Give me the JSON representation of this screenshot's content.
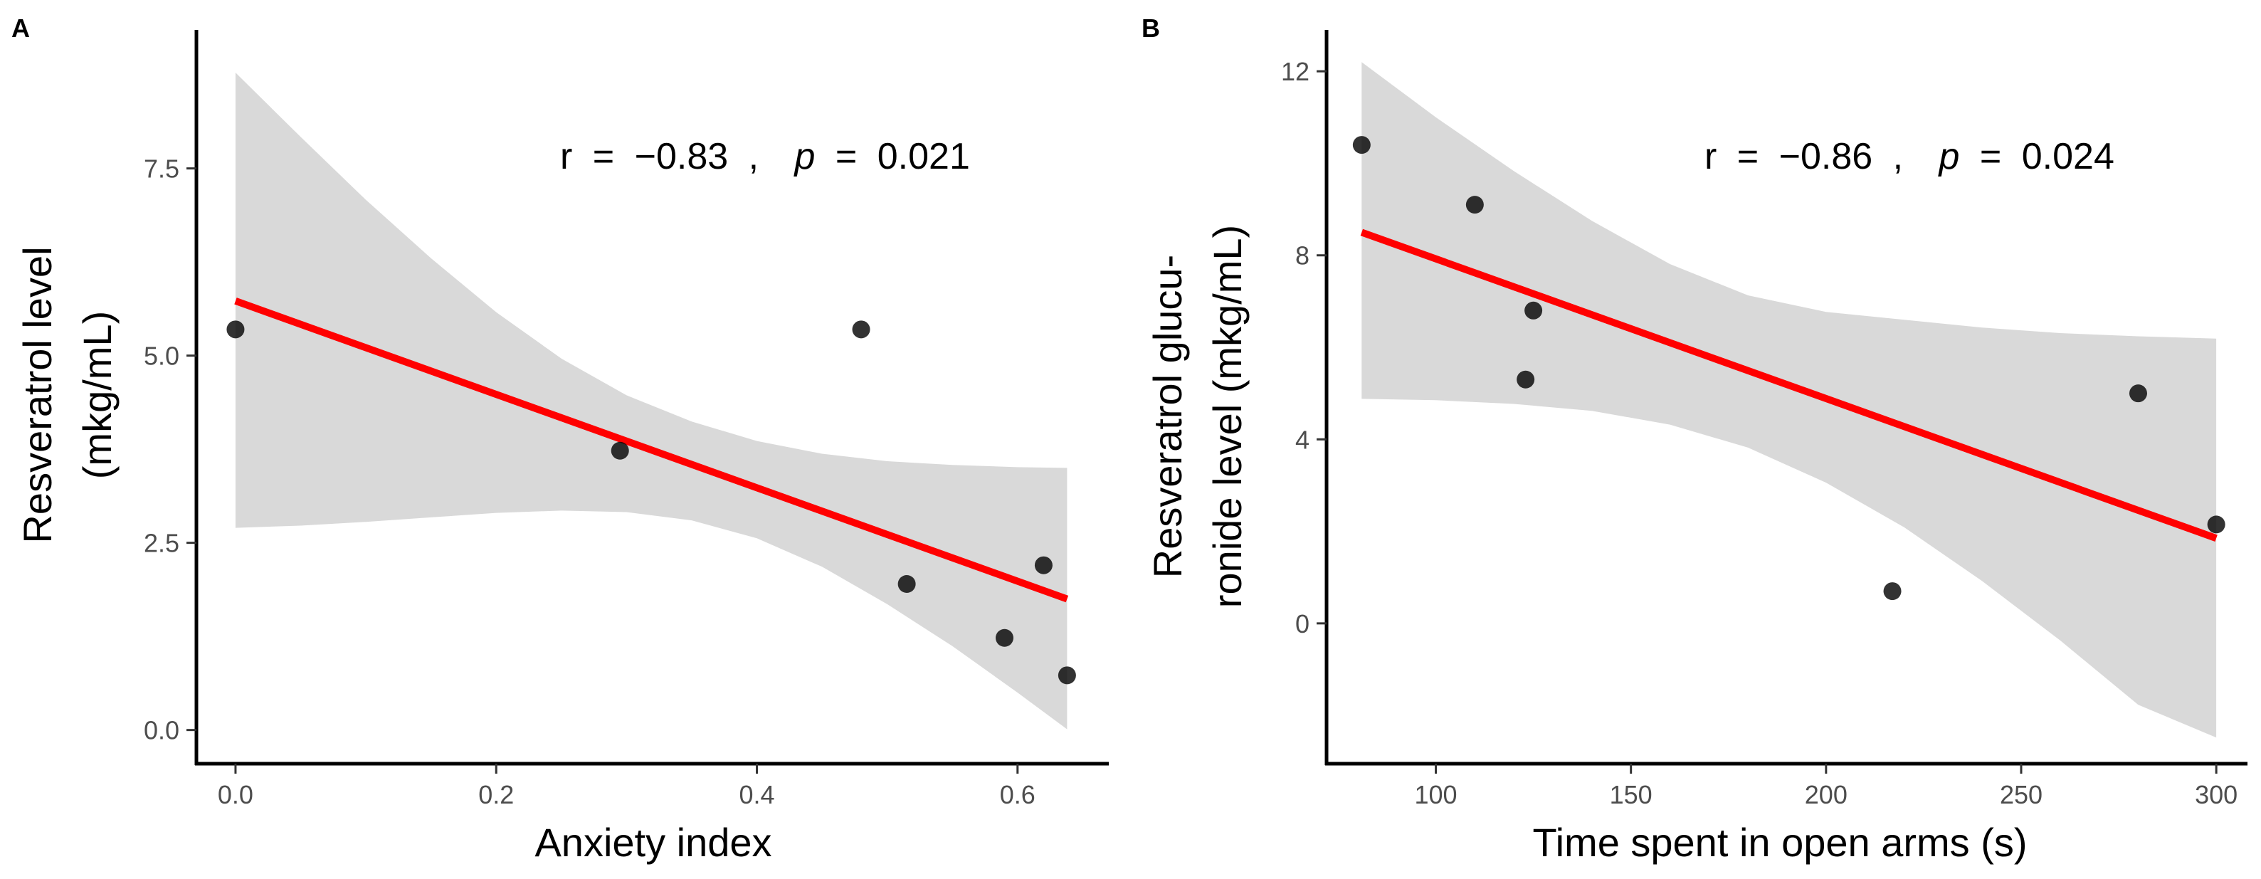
{
  "chart_data": [
    {
      "type": "scatter",
      "panel": "A",
      "xlabel": "Anxiety index",
      "ylabel": [
        "Resveratrol level",
        "(mkg/mL)"
      ],
      "xlim": [
        -0.03,
        0.67
      ],
      "ylim": [
        -0.45,
        9.35
      ],
      "xticks": [
        0.0,
        0.2,
        0.4,
        0.6
      ],
      "xtick_labels": [
        "0.0",
        "0.2",
        "0.4",
        "0.6"
      ],
      "yticks": [
        0.0,
        2.5,
        5.0,
        7.5
      ],
      "ytick_labels": [
        "0.0",
        "2.5",
        "5.0",
        "7.5"
      ],
      "points": [
        {
          "x": 0.0,
          "y": 5.35
        },
        {
          "x": 0.295,
          "y": 3.73
        },
        {
          "x": 0.48,
          "y": 5.35
        },
        {
          "x": 0.515,
          "y": 1.95
        },
        {
          "x": 0.59,
          "y": 1.23
        },
        {
          "x": 0.62,
          "y": 2.2
        },
        {
          "x": 0.638,
          "y": 0.73
        }
      ],
      "fit_line": {
        "x": [
          0.0,
          0.638
        ],
        "y": [
          5.73,
          1.75
        ],
        "color": "#ff0000"
      },
      "confidence_band": {
        "x": [
          0.0,
          0.05,
          0.1,
          0.15,
          0.2,
          0.25,
          0.3,
          0.35,
          0.4,
          0.45,
          0.5,
          0.55,
          0.6,
          0.638
        ],
        "lower": [
          2.7,
          2.73,
          2.78,
          2.84,
          2.9,
          2.93,
          2.91,
          2.8,
          2.56,
          2.18,
          1.68,
          1.12,
          0.5,
          0.01
        ],
        "upper": [
          8.78,
          7.92,
          7.08,
          6.3,
          5.58,
          4.96,
          4.47,
          4.12,
          3.86,
          3.69,
          3.59,
          3.54,
          3.51,
          3.5
        ],
        "color": "#d9d9d9"
      },
      "stat": {
        "r_label": "r",
        "eq1": "=",
        "r_value": "−0.83",
        "comma": ",",
        "p_label": "p",
        "eq2": "=",
        "p_value": "0.021"
      }
    },
    {
      "type": "scatter",
      "panel": "B",
      "xlabel": "Time spent in open arms (s)",
      "ylabel": [
        "Resveratrol glucu-",
        "ronide level (mkg/mL)"
      ],
      "xlim": [
        72,
        308
      ],
      "ylim": [
        -3.05,
        12.9
      ],
      "xticks": [
        100,
        150,
        200,
        250,
        300
      ],
      "xtick_labels": [
        "100",
        "150",
        "200",
        "250",
        "300"
      ],
      "yticks": [
        0,
        4,
        8,
        12
      ],
      "ytick_labels": [
        "0",
        "4",
        "8",
        "12"
      ],
      "points": [
        {
          "x": 81,
          "y": 10.4
        },
        {
          "x": 110,
          "y": 9.1
        },
        {
          "x": 125,
          "y": 6.8
        },
        {
          "x": 123,
          "y": 5.3
        },
        {
          "x": 217,
          "y": 0.7
        },
        {
          "x": 280,
          "y": 5.0
        },
        {
          "x": 300,
          "y": 2.15
        }
      ],
      "fit_line": {
        "x": [
          81,
          300
        ],
        "y": [
          8.5,
          1.85
        ],
        "color": "#ff0000"
      },
      "confidence_band": {
        "x": [
          81,
          100,
          120,
          140,
          160,
          180,
          200,
          220,
          240,
          260,
          280,
          300
        ],
        "lower": [
          4.88,
          4.85,
          4.77,
          4.62,
          4.32,
          3.82,
          3.06,
          2.09,
          0.92,
          -0.37,
          -1.77,
          -2.48
        ],
        "upper": [
          12.2,
          11.0,
          9.83,
          8.75,
          7.81,
          7.13,
          6.77,
          6.6,
          6.43,
          6.31,
          6.24,
          6.19
        ],
        "color": "#d9d9d9"
      },
      "stat": {
        "r_label": "r",
        "eq1": "=",
        "r_value": "−0.86",
        "comma": ",",
        "p_label": "p",
        "eq2": "=",
        "p_value": "0.024"
      }
    }
  ]
}
